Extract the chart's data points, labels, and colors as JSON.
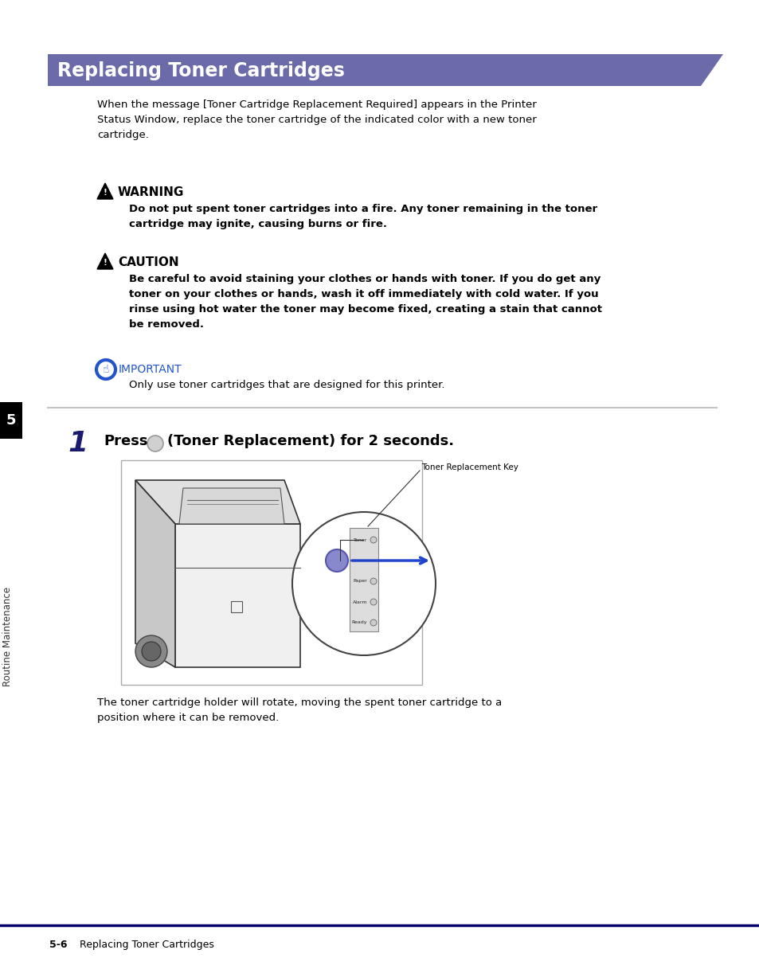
{
  "page_bg": "#ffffff",
  "header_bg": "#6b6baa",
  "header_text": "Replacing Toner Cartridges",
  "header_text_color": "#ffffff",
  "sidebar_bg": "#1a1a1a",
  "sidebar_text": "Routine Maintenance",
  "sidebar_num": "5",
  "body_text_color": "#000000",
  "important_color": "#2255cc",
  "footer_line_color": "#000066",
  "footer_text_bold": "5-6",
  "footer_text_normal": "Replacing Toner Cartridges",
  "intro_text": "When the message [Toner Cartridge Replacement Required] appears in the Printer\nStatus Window, replace the toner cartridge of the indicated color with a new toner\ncartridge.",
  "warning_title": "WARNING",
  "warning_body": "Do not put spent toner cartridges into a fire. Any toner remaining in the toner\ncartridge may ignite, causing burns or fire.",
  "caution_title": "CAUTION",
  "caution_body": "Be careful to avoid staining your clothes or hands with toner. If you do get any\ntoner on your clothes or hands, wash it off immediately with cold water. If you\nrinse using hot water the toner may become fixed, creating a stain that cannot\nbe removed.",
  "important_title": "IMPORTANT",
  "important_body": "Only use toner cartridges that are designed for this printer.",
  "step1_num": "1",
  "step1_press": "Press",
  "step1_action": "(Toner Replacement) for 2 seconds.",
  "step1_caption": "Toner Replacement Key",
  "step1_footer": "The toner cartridge holder will rotate, moving the spent toner cartridge to a\nposition where it can be removed.",
  "divider_color": "#bbbbbb",
  "footer_line_color2": "#000066"
}
